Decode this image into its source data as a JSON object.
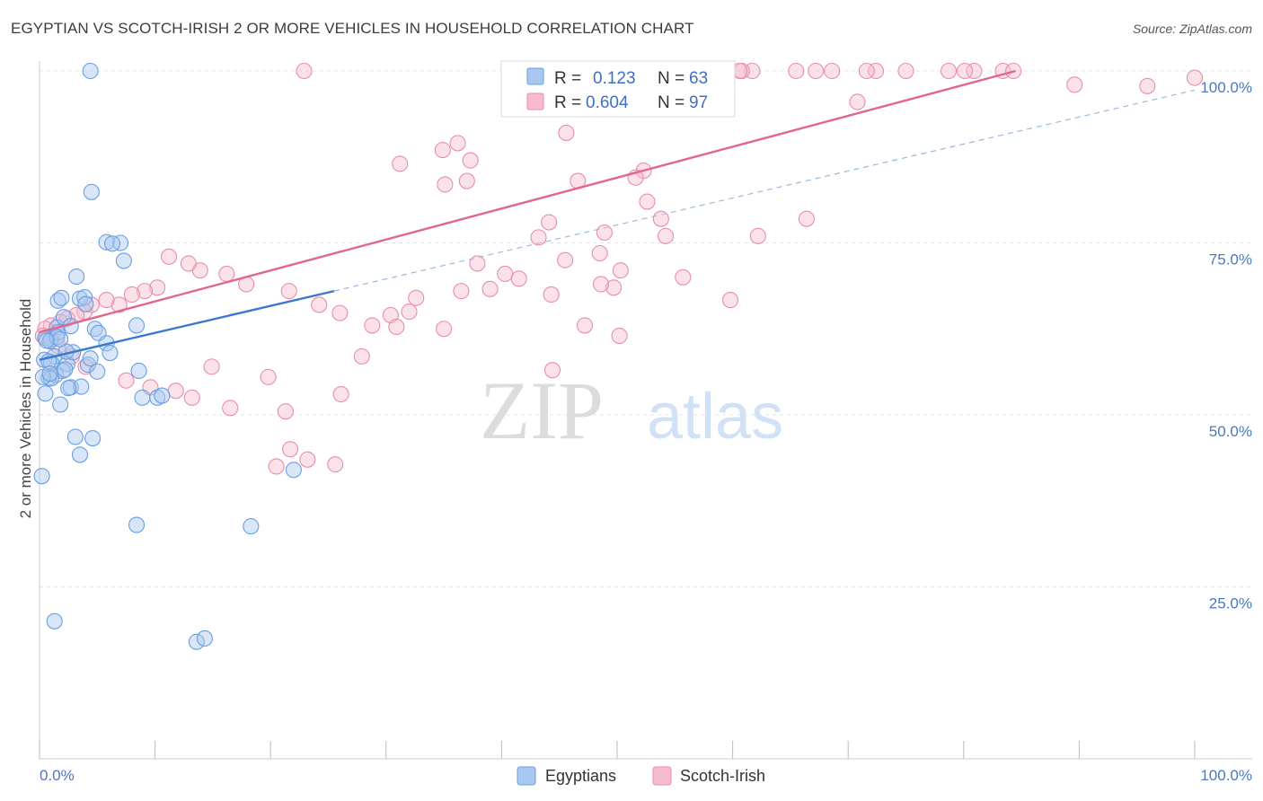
{
  "title": "EGYPTIAN VS SCOTCH-IRISH 2 OR MORE VEHICLES IN HOUSEHOLD CORRELATION CHART",
  "source": "Source: ZipAtlas.com",
  "watermark": {
    "zip": "ZIP",
    "atlas": "atlas"
  },
  "colors": {
    "egyptians_fill": "#a8c8f0",
    "egyptians_stroke": "#6a9ee0",
    "egyptians_line": "#3a78d0",
    "scotch_fill": "#f6bccd",
    "scotch_stroke": "#e98eaa",
    "scotch_line": "#e0668e",
    "dashed": "#9ab8e0",
    "grid": "#e4e4e4",
    "axis_text": "#4a78c2"
  },
  "stats_box": {
    "rows": [
      {
        "r_label": "R =",
        "r_value": "0.123",
        "n_label": "N =",
        "n_value": "63"
      },
      {
        "r_label": "R =",
        "r_value": "0.604",
        "n_label": "N =",
        "n_value": "97"
      }
    ]
  },
  "chart_data": {
    "type": "scatter",
    "title": "EGYPTIAN VS SCOTCH-IRISH 2 OR MORE VEHICLES IN HOUSEHOLD CORRELATION CHART",
    "xlabel": "",
    "ylabel": "2 or more Vehicles in Household",
    "xlim": [
      0,
      100
    ],
    "ylim": [
      0,
      100
    ],
    "x_tick_labels": [
      "0.0%",
      "100.0%"
    ],
    "y_tick_labels": [
      "25.0%",
      "50.0%",
      "75.0%",
      "100.0%"
    ],
    "y_ticks": [
      25,
      50,
      75,
      100
    ],
    "grid": true,
    "legend_position": "bottom-center",
    "series": [
      {
        "name": "Egyptians",
        "r": 0.123,
        "n": 63,
        "trend": {
          "x": [
            0,
            25.5
          ],
          "y": [
            58.0,
            68.0
          ]
        },
        "x": [
          4.4,
          0.5,
          1.0,
          0.9,
          1.3,
          2.4,
          2.9,
          2.3,
          1.5,
          1.6,
          1.5,
          1.8,
          1.4,
          2.0,
          2.2,
          3.5,
          3.9,
          4.0,
          4.8,
          5.1,
          5.8,
          6.1,
          7.0,
          7.3,
          3.2,
          4.5,
          0.4,
          0.8,
          1.0,
          2.7,
          3.6,
          4.2,
          4.4,
          5.0,
          8.4,
          8.6,
          10.2,
          8.9,
          10.6,
          8.4,
          13.6,
          14.3,
          18.3,
          22.0,
          1.3,
          0.5,
          0.6,
          1.0,
          0.8,
          2.1,
          1.6,
          1.9,
          2.7,
          2.5,
          1.8,
          3.1,
          3.5,
          4.6,
          5.8,
          6.3,
          0.3,
          0.2,
          0.9
        ],
        "y": [
          100.0,
          61.2,
          61.0,
          60.7,
          58.5,
          57.4,
          59.1,
          59.2,
          62.7,
          62.0,
          61.3,
          61.0,
          55.8,
          56.4,
          56.6,
          66.9,
          67.1,
          66.1,
          62.5,
          61.9,
          60.4,
          59.0,
          75.0,
          72.4,
          70.1,
          82.4,
          58.0,
          55.4,
          57.6,
          54.0,
          54.1,
          57.3,
          58.2,
          56.3,
          63.0,
          56.4,
          52.5,
          52.5,
          52.8,
          34.0,
          17.0,
          17.5,
          33.8,
          42.0,
          20.0,
          53.1,
          60.8,
          55.3,
          57.8,
          64.2,
          66.6,
          67.0,
          62.9,
          53.9,
          51.5,
          46.8,
          44.2,
          46.6,
          75.1,
          74.9,
          55.5,
          41.1,
          56.0
        ],
        "trend_note": ""
      },
      {
        "name": "Scotch-Irish",
        "r": 0.604,
        "n": 97,
        "trend": {
          "x": [
            0,
            84.5
          ],
          "y": [
            62.0,
            100.0
          ]
        },
        "x": [
          22.9,
          31.2,
          35.1,
          37.0,
          34.9,
          36.2,
          37.3,
          46.6,
          52.3,
          51.6,
          53.8,
          52.6,
          54.2,
          62.2,
          66.4,
          61.7,
          89.6,
          95.9,
          70.8,
          80.9,
          83.4,
          84.3,
          75.0,
          100.0,
          80.1,
          67.2,
          72.4,
          78.7,
          60.8,
          60.6,
          65.5,
          68.6,
          71.6,
          45.6,
          44.1,
          48.9,
          43.2,
          45.5,
          48.5,
          50.3,
          55.7,
          59.8,
          49.7,
          48.6,
          44.3,
          47.2,
          50.2,
          14.9,
          19.8,
          16.5,
          21.3,
          21.7,
          20.5,
          23.2,
          25.6,
          26.1,
          27.9,
          30.4,
          32.0,
          32.6,
          36.5,
          37.9,
          39.0,
          40.3,
          41.5,
          44.4,
          35.0,
          30.9,
          28.8,
          26.0,
          24.2,
          21.6,
          17.9,
          16.2,
          13.9,
          12.9,
          11.2,
          10.2,
          9.1,
          8.0,
          6.9,
          5.8,
          4.5,
          3.9,
          3.2,
          2.4,
          1.8,
          1.0,
          0.5,
          0.3,
          1.6,
          2.8,
          4.0,
          7.5,
          9.6,
          11.8,
          13.2
        ],
        "y": [
          100.0,
          86.5,
          83.5,
          84.0,
          88.5,
          89.5,
          87.0,
          84.0,
          85.5,
          84.5,
          78.5,
          81.0,
          76.0,
          76.0,
          78.5,
          100.0,
          98.0,
          97.8,
          95.5,
          100.0,
          100.0,
          100.0,
          100.0,
          99.0,
          100.0,
          100.0,
          100.0,
          100.0,
          100.0,
          100.0,
          100.0,
          100.0,
          100.0,
          91.0,
          78.0,
          76.5,
          75.8,
          72.5,
          73.5,
          71.0,
          70.0,
          66.7,
          68.5,
          69.0,
          67.5,
          63.0,
          61.5,
          57.0,
          55.5,
          51.0,
          50.5,
          45.0,
          42.5,
          43.5,
          42.8,
          53.0,
          58.5,
          64.5,
          65.0,
          67.0,
          68.0,
          72.0,
          68.3,
          70.5,
          69.8,
          56.5,
          62.5,
          62.8,
          63.0,
          64.8,
          66.0,
          68.0,
          69.0,
          70.5,
          71.0,
          72.0,
          73.0,
          68.5,
          68.0,
          67.5,
          66.0,
          66.7,
          66.0,
          65.0,
          64.5,
          64.0,
          63.5,
          63.0,
          62.5,
          61.5,
          60.0,
          58.5,
          57.0,
          55.0,
          54.0,
          53.5,
          52.5
        ]
      }
    ]
  },
  "legend": [
    {
      "label": "Egyptians"
    },
    {
      "label": "Scotch-Irish"
    }
  ]
}
